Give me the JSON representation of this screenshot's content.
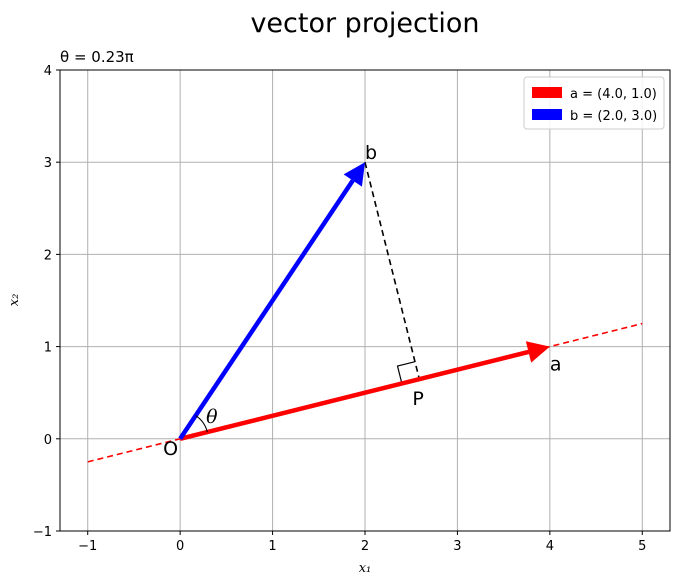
{
  "chart_data": {
    "type": "line",
    "title": "vector projection",
    "subtitle": "θ = 0.23π",
    "xlabel": "x₁",
    "ylabel": "x₂",
    "xlim": [
      -1.3,
      5.3
    ],
    "ylim": [
      -1,
      4
    ],
    "xticks": [
      -1,
      0,
      1,
      2,
      3,
      4,
      5
    ],
    "yticks": [
      -1,
      0,
      1,
      2,
      3,
      4
    ],
    "grid": true,
    "legend_position": "top-right",
    "series": [
      {
        "name": "a = (4.0, 1.0)",
        "color": "#ff0000",
        "from": [
          0,
          0
        ],
        "to": [
          4.0,
          1.0
        ]
      },
      {
        "name": "b = (2.0, 3.0)",
        "color": "#0000ff",
        "from": [
          0,
          0
        ],
        "to": [
          2.0,
          3.0
        ]
      }
    ],
    "extension_line": {
      "color": "#ff0000",
      "from": [
        -1,
        -0.25
      ],
      "to": [
        5,
        1.25
      ]
    },
    "projection_line": {
      "color": "#000000",
      "from": [
        2.0,
        3.0
      ],
      "to": [
        2.588,
        0.647
      ]
    },
    "points": [
      {
        "label": "O",
        "x": 0,
        "y": 0
      },
      {
        "label": "a",
        "x": 4.0,
        "y": 1.0
      },
      {
        "label": "b",
        "x": 2.0,
        "y": 3.0
      },
      {
        "label": "P",
        "x": 2.588,
        "y": 0.647
      }
    ],
    "angle_label": "θ"
  }
}
